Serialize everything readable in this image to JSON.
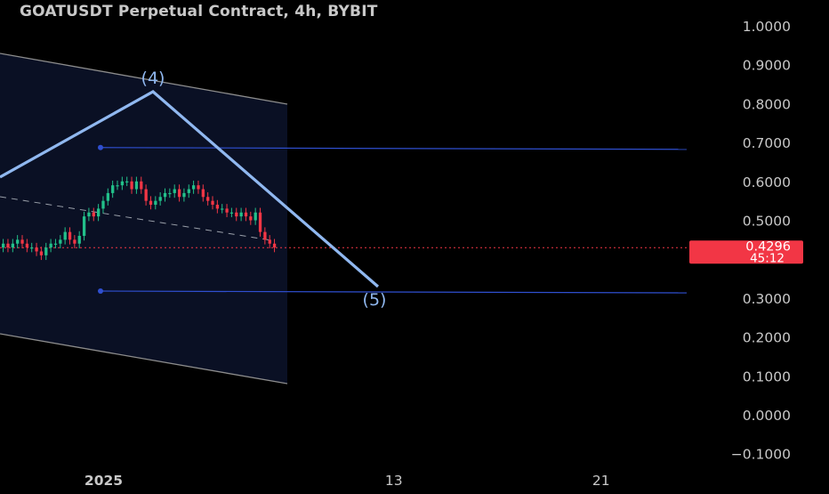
{
  "header": {
    "title": "GOATUSDT Perpetual Contract, 4h, BYBIT"
  },
  "colors": {
    "background": "#000000",
    "axis_text": "#c8c8c8",
    "up_candle": "#22c08a",
    "down_candle": "#f23645",
    "wave_line": "#90b8f0",
    "level_line": "#2f4fd0",
    "channel_fill": "#0a1024",
    "channel_border": "#8c8c8c",
    "price_badge": "#f23645"
  },
  "price_badge": {
    "price": "0.4296",
    "countdown": "45:12"
  },
  "chart_data": {
    "type": "candlestick",
    "title": "GOATUSDT Perpetual Contract, 4h, BYBIT",
    "y_ticks": [
      "1.0000",
      "0.9000",
      "0.8000",
      "0.7000",
      "0.6000",
      "0.5000",
      "0.3000",
      "0.2000",
      "0.1000",
      "0.0000",
      "−0.1000"
    ],
    "y_tick_values": [
      1.0,
      0.9,
      0.8,
      0.7,
      0.6,
      0.5,
      0.3,
      0.2,
      0.1,
      0.0,
      -0.1
    ],
    "ylim": [
      -0.1,
      1.0
    ],
    "x_ticks": [
      {
        "label": "2025",
        "pos": 0.125
      },
      {
        "label": "13",
        "pos": 0.475
      },
      {
        "label": "21",
        "pos": 0.725
      }
    ],
    "last_price": 0.4296,
    "closes": [
      0.44,
      0.43,
      0.44,
      0.45,
      0.44,
      0.43,
      0.43,
      0.42,
      0.41,
      0.43,
      0.44,
      0.44,
      0.45,
      0.47,
      0.45,
      0.44,
      0.46,
      0.51,
      0.52,
      0.51,
      0.53,
      0.55,
      0.57,
      0.59,
      0.59,
      0.6,
      0.6,
      0.58,
      0.6,
      0.58,
      0.55,
      0.54,
      0.55,
      0.56,
      0.57,
      0.57,
      0.58,
      0.56,
      0.57,
      0.58,
      0.59,
      0.58,
      0.56,
      0.55,
      0.54,
      0.53,
      0.53,
      0.52,
      0.52,
      0.51,
      0.52,
      0.51,
      0.5,
      0.52,
      0.47,
      0.45,
      0.44,
      0.43
    ],
    "opens": [
      0.43,
      0.44,
      0.43,
      0.44,
      0.45,
      0.44,
      0.43,
      0.43,
      0.42,
      0.41,
      0.43,
      0.44,
      0.44,
      0.45,
      0.47,
      0.45,
      0.44,
      0.46,
      0.51,
      0.52,
      0.51,
      0.53,
      0.55,
      0.57,
      0.59,
      0.59,
      0.6,
      0.6,
      0.58,
      0.6,
      0.58,
      0.55,
      0.54,
      0.55,
      0.56,
      0.57,
      0.57,
      0.58,
      0.56,
      0.57,
      0.58,
      0.59,
      0.58,
      0.56,
      0.55,
      0.54,
      0.53,
      0.53,
      0.52,
      0.52,
      0.51,
      0.52,
      0.51,
      0.5,
      0.52,
      0.47,
      0.45,
      0.44
    ],
    "levels": [
      0.687,
      0.318
    ],
    "wave_labels": [
      {
        "label": "(4)",
        "price": 0.83
      },
      {
        "label": "(5)",
        "price": 0.31
      }
    ]
  }
}
